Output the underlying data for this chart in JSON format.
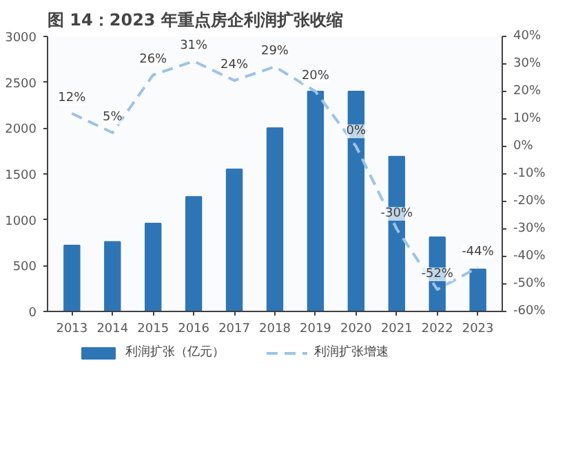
{
  "chart_data": {
    "type": "bar",
    "title": "图 14：2023 年重点房企利润扩张收缩",
    "categories": [
      "2013",
      "2014",
      "2015",
      "2016",
      "2017",
      "2018",
      "2019",
      "2020",
      "2021",
      "2022",
      "2023"
    ],
    "series": [
      {
        "name": "利润扩张（亿元）",
        "color": "#2e75b6",
        "values": [
          720,
          760,
          960,
          1250,
          1550,
          2000,
          2400,
          2400,
          1690,
          810,
          460
        ]
      },
      {
        "name": "利润扩张增速",
        "type": "line",
        "axis": "y2",
        "color": "#9dc3e6",
        "line_style": "dashed",
        "values": [
          12,
          5,
          26,
          31,
          24,
          29,
          20,
          0,
          -30,
          -52,
          -44
        ],
        "value_labels": [
          "12%",
          "5%",
          "26%",
          "31%",
          "24%",
          "29%",
          "20%",
          "0%",
          "-30%",
          "-52%",
          "-44%"
        ]
      }
    ],
    "ylim": [
      0,
      3000
    ],
    "yticks": [
      0,
      500,
      1000,
      1500,
      2000,
      2500,
      3000
    ],
    "y2lim": [
      -60,
      40
    ],
    "y2ticks": [
      {
        "value": -60,
        "label": "-60%"
      },
      {
        "value": -50,
        "label": "-50%"
      },
      {
        "value": -40,
        "label": "-40%"
      },
      {
        "value": -30,
        "label": "-30%"
      },
      {
        "value": -20,
        "label": "-20%"
      },
      {
        "value": -10,
        "label": "-10%"
      },
      {
        "value": 0,
        "label": "0%"
      },
      {
        "value": 10,
        "label": "10%"
      },
      {
        "value": 20,
        "label": "20%"
      },
      {
        "value": 30,
        "label": "30%"
      },
      {
        "value": 40,
        "label": "40%"
      }
    ],
    "grid": false,
    "legend": "bottom"
  }
}
